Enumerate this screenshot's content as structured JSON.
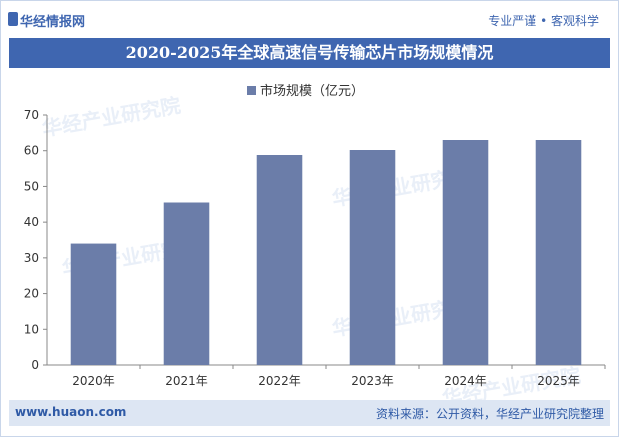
{
  "header": {
    "brand": "华经情报网",
    "slogan": "专业严谨 • 客观科学"
  },
  "title": "2020-2025年全球高速信号传输芯片市场规模情况",
  "chart_data": {
    "type": "bar",
    "categories": [
      "2020年",
      "2021年",
      "2022年",
      "2023年",
      "2024年",
      "2025年"
    ],
    "series": [
      {
        "name": "市场规模（亿元）",
        "values": [
          34.0,
          45.5,
          58.8,
          60.2,
          63.0,
          63.0
        ]
      }
    ],
    "ylim": [
      0,
      70
    ],
    "yticks": [
      0,
      10,
      20,
      30,
      40,
      50,
      60,
      70
    ],
    "legend": "top",
    "grid": false,
    "colors": {
      "bar": "#6b7da9"
    }
  },
  "watermark": "华经产业研究院",
  "footer": {
    "site": "www.huaon.com",
    "source": "资料来源：公开资料，华经产业研究院整理"
  }
}
